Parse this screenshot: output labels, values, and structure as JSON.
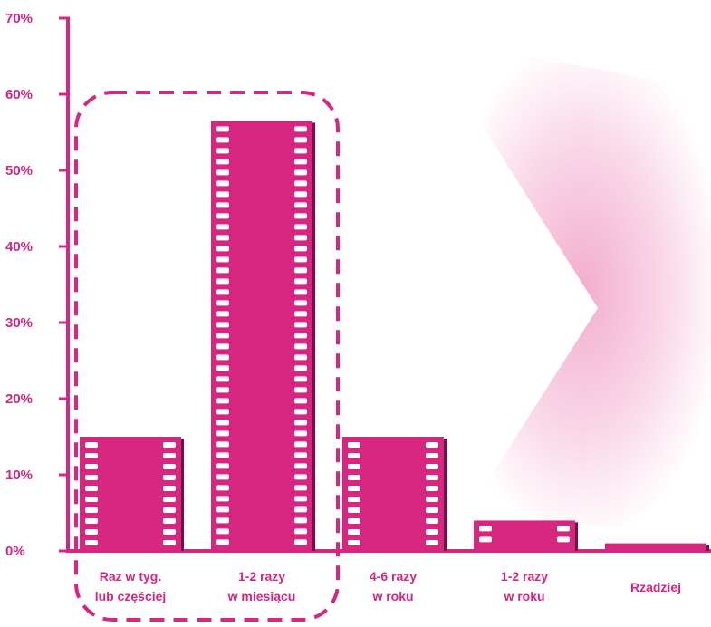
{
  "chart_data": {
    "type": "bar",
    "title": "",
    "xlabel": "",
    "ylabel": "",
    "ylim": [
      0,
      70
    ],
    "yticks": [
      "0%",
      "10%",
      "20%",
      "30%",
      "40%",
      "50%",
      "60%",
      "70%"
    ],
    "categories": [
      [
        "Raz w tyg.",
        "lub częściej"
      ],
      [
        "1-2 razy",
        "w miesiącu"
      ],
      [
        "4-6 razy",
        "w roku"
      ],
      [
        "1-2 razy",
        "w roku"
      ],
      [
        "Rzadziej"
      ]
    ],
    "values": [
      15,
      56.5,
      15,
      4,
      1
    ],
    "highlight": {
      "style": "dashed-rounded-box",
      "categories": [
        0,
        1
      ]
    },
    "grid": false,
    "legend": "none"
  },
  "colors": {
    "bar": "#d6267f",
    "bar_edge": "#7a0f45",
    "accent": "#d6267f",
    "background": "#ffffff",
    "glow": "#e96aa6"
  }
}
